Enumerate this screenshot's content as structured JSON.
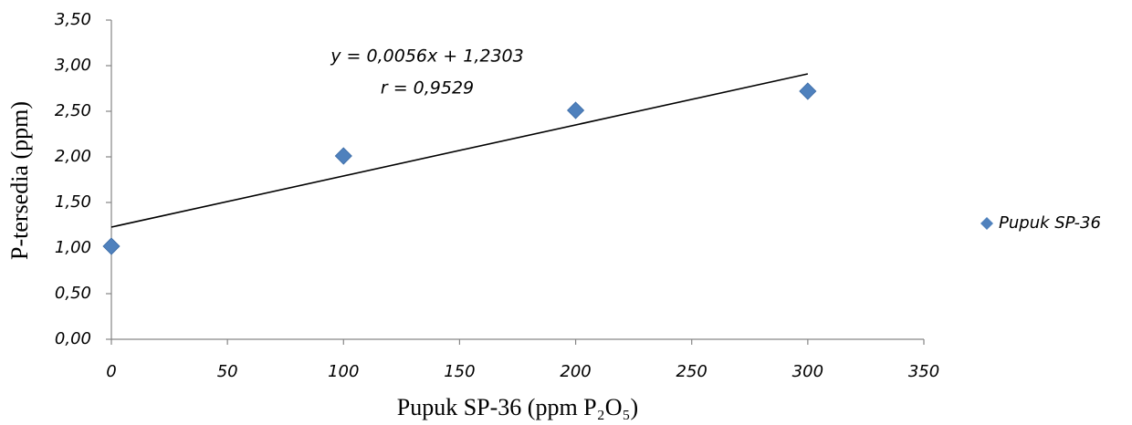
{
  "chart_data": {
    "type": "scatter",
    "x_label": "Pupuk SP-36 (ppm P₂O₅)",
    "y_label": "P-tersedia (ppm)",
    "x": [
      0,
      100,
      200,
      300
    ],
    "series": [
      {
        "name": "Pupuk SP-36",
        "color": "#4f81bd",
        "values": [
          1.02,
          2.01,
          2.51,
          2.72
        ]
      }
    ],
    "trendline": {
      "equation": "y = 0,0056x + 1,2303",
      "r_label": "r = 0,9529",
      "slope": 0.0056,
      "intercept": 1.2303,
      "color": "#000000"
    },
    "xlim": [
      0,
      350
    ],
    "xticks": [
      0,
      50,
      100,
      150,
      200,
      250,
      300,
      350
    ],
    "ylim": [
      0,
      3.5
    ],
    "yticks": [
      {
        "value": 0,
        "label": "0,00"
      },
      {
        "value": 0.5,
        "label": "0,50"
      },
      {
        "value": 1,
        "label": "1,00"
      },
      {
        "value": 1.5,
        "label": "1,50"
      },
      {
        "value": 2,
        "label": "2,00"
      },
      {
        "value": 2.5,
        "label": "2,50"
      },
      {
        "value": 3,
        "label": "3,00"
      },
      {
        "value": 3.5,
        "label": "3,50"
      }
    ],
    "grid": false,
    "legend": "right"
  }
}
